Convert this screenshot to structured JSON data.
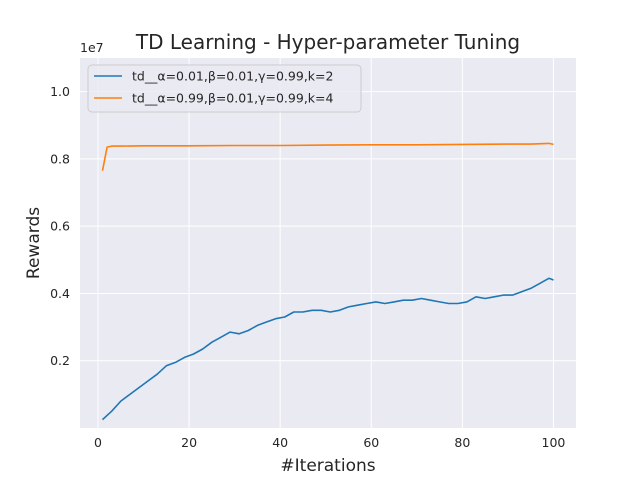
{
  "chart_data": {
    "type": "line",
    "title": "TD Learning - Hyper-parameter Tuning",
    "xlabel": "#Iterations",
    "ylabel": "Rewards",
    "y_offset_label": "1e7",
    "xlim": [
      -3.95,
      104.95
    ],
    "ylim": [
      0,
      1.1
    ],
    "x_ticks": [
      0,
      20,
      40,
      60,
      80,
      100
    ],
    "x_tick_labels": [
      "0",
      "20",
      "40",
      "60",
      "80",
      "100"
    ],
    "y_ticks": [
      0.2,
      0.4,
      0.6,
      0.8,
      1.0
    ],
    "y_tick_labels": [
      "0.2",
      "0.4",
      "0.6",
      "0.8",
      "1.0"
    ],
    "grid": true,
    "legend_position": "upper-left",
    "colors": {
      "background": "#eaeaf2",
      "grid": "#ffffff"
    },
    "series": [
      {
        "name": "td__α=0.01,β=0.01,γ=0.99,k=2",
        "color": "#1f77b4",
        "x": [
          1,
          3,
          5,
          7,
          9,
          11,
          13,
          15,
          17,
          19,
          21,
          23,
          25,
          27,
          29,
          31,
          33,
          35,
          37,
          39,
          41,
          43,
          45,
          47,
          49,
          51,
          53,
          55,
          57,
          59,
          61,
          63,
          65,
          67,
          69,
          71,
          73,
          75,
          77,
          79,
          81,
          83,
          85,
          87,
          89,
          91,
          93,
          95,
          97,
          99,
          100
        ],
        "values": [
          0.025,
          0.05,
          0.08,
          0.1,
          0.12,
          0.14,
          0.16,
          0.185,
          0.195,
          0.21,
          0.22,
          0.235,
          0.255,
          0.27,
          0.285,
          0.28,
          0.29,
          0.305,
          0.315,
          0.325,
          0.33,
          0.345,
          0.345,
          0.35,
          0.35,
          0.345,
          0.35,
          0.36,
          0.365,
          0.37,
          0.375,
          0.37,
          0.375,
          0.38,
          0.38,
          0.385,
          0.38,
          0.375,
          0.37,
          0.37,
          0.375,
          0.39,
          0.385,
          0.39,
          0.395,
          0.395,
          0.405,
          0.415,
          0.43,
          0.445,
          0.44
        ]
      },
      {
        "name": "td__α=0.99,β=0.01,γ=0.99,k=4",
        "color": "#ff7f0e",
        "x": [
          1,
          2,
          3,
          5,
          10,
          20,
          30,
          40,
          50,
          60,
          70,
          80,
          90,
          95,
          99,
          100
        ],
        "values": [
          0.765,
          0.835,
          0.838,
          0.838,
          0.839,
          0.839,
          0.84,
          0.84,
          0.841,
          0.842,
          0.842,
          0.843,
          0.844,
          0.844,
          0.846,
          0.843
        ]
      }
    ]
  }
}
